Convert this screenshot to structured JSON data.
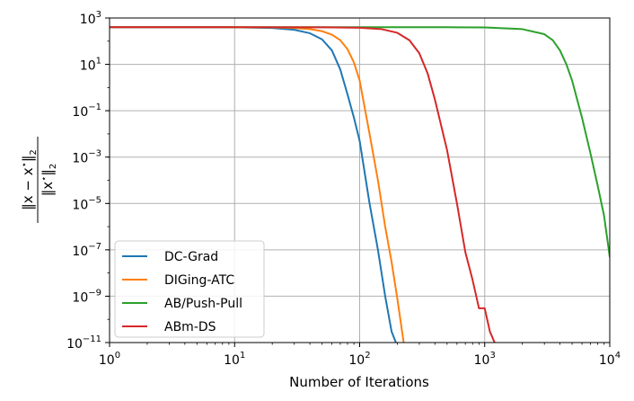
{
  "chart_data": {
    "type": "line",
    "xlabel": "Number of Iterations",
    "ylabel": "‖x − x*‖₂ / ‖x*‖₂",
    "xscale": "log",
    "yscale": "log",
    "xlim": [
      1,
      10000
    ],
    "ylim": [
      1e-11,
      1000
    ],
    "grid": true,
    "legend_position": "lower-left",
    "x_ticks": [
      {
        "value": 1,
        "base": "10",
        "exp": "0"
      },
      {
        "value": 10,
        "base": "10",
        "exp": "1"
      },
      {
        "value": 100,
        "base": "10",
        "exp": "2"
      },
      {
        "value": 1000,
        "base": "10",
        "exp": "3"
      },
      {
        "value": 10000,
        "base": "10",
        "exp": "4"
      }
    ],
    "y_ticks": [
      {
        "value": 1000,
        "base": "10",
        "exp": "3"
      },
      {
        "value": 10,
        "base": "10",
        "exp": "1"
      },
      {
        "value": 0.1,
        "base": "10",
        "exp": "−1"
      },
      {
        "value": 0.001,
        "base": "10",
        "exp": "−3"
      },
      {
        "value": 1e-05,
        "base": "10",
        "exp": "−5"
      },
      {
        "value": 1e-07,
        "base": "10",
        "exp": "−7"
      },
      {
        "value": 1e-09,
        "base": "10",
        "exp": "−9"
      },
      {
        "value": 1e-11,
        "base": "10",
        "exp": "−11"
      }
    ],
    "series": [
      {
        "name": "DC-Grad",
        "color": "#1f77b4",
        "x": [
          1,
          5,
          10,
          20,
          30,
          40,
          50,
          60,
          70,
          80,
          90,
          100,
          120,
          140,
          160,
          180,
          195
        ],
        "y": [
          400,
          400,
          398,
          370,
          310,
          220,
          120,
          40,
          6,
          0.5,
          0.05,
          0.005,
          1e-05,
          1e-07,
          1e-09,
          3e-11,
          1e-11
        ]
      },
      {
        "name": "DIGing-ATC",
        "color": "#ff7f0e",
        "x": [
          1,
          5,
          10,
          20,
          30,
          40,
          50,
          60,
          70,
          80,
          90,
          100,
          120,
          140,
          160,
          180,
          200,
          225
        ],
        "y": [
          400,
          400,
          399,
          390,
          370,
          330,
          270,
          190,
          110,
          45,
          12,
          2,
          0.01,
          0.0001,
          1e-06,
          3e-08,
          8e-10,
          1e-11
        ]
      },
      {
        "name": "AB/Push-Pull",
        "color": "#2ca02c",
        "x": [
          1,
          10,
          100,
          500,
          1000,
          2000,
          3000,
          3500,
          4000,
          4500,
          5000,
          6000,
          7000,
          8000,
          9000,
          10000
        ],
        "y": [
          400,
          400,
          400,
          400,
          390,
          330,
          200,
          110,
          40,
          10,
          2,
          0.05,
          0.0015,
          6e-05,
          3e-06,
          5e-08
        ]
      },
      {
        "name": "ABm-DS",
        "color": "#d62728",
        "x": [
          1,
          10,
          50,
          100,
          150,
          200,
          250,
          300,
          350,
          400,
          500,
          600,
          700,
          800,
          900,
          1000,
          1100,
          1200
        ],
        "y": [
          400,
          400,
          398,
          380,
          330,
          230,
          110,
          30,
          4,
          0.3,
          0.002,
          1e-05,
          8e-08,
          5e-09,
          3e-10,
          3e-10,
          3e-11,
          1e-11
        ]
      }
    ]
  }
}
